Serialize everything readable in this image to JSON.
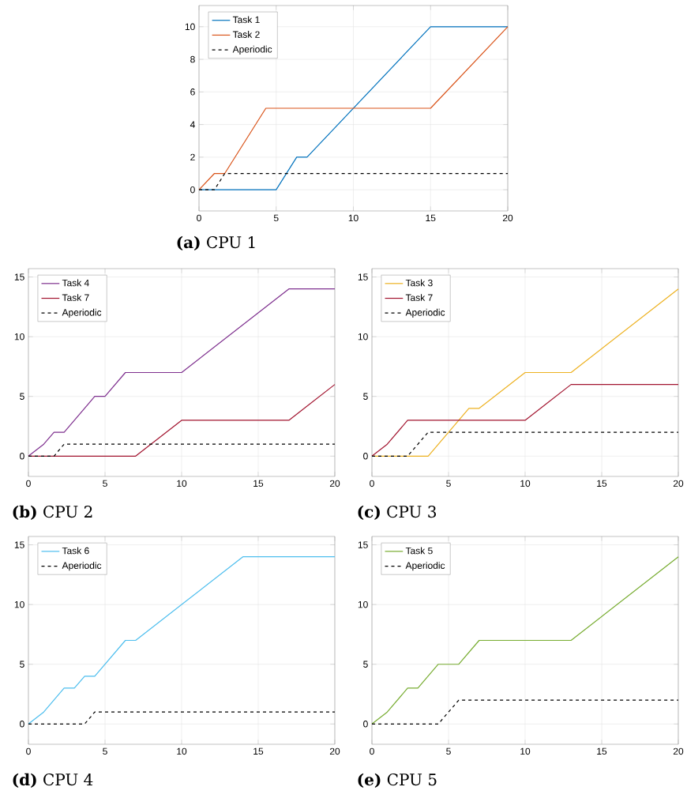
{
  "chart_data": [
    {
      "type": "line",
      "title": "**(a)** CPU 1",
      "xlim": [
        0,
        20
      ],
      "ylim": [
        -1.3,
        11.3
      ],
      "xticks": [
        0,
        5,
        10,
        15,
        20
      ],
      "yticks": [
        0,
        2,
        4,
        6,
        8,
        10
      ],
      "grid": true,
      "legend": "top left",
      "series": [
        {
          "name": "Task 1",
          "color": "#0072bd",
          "line_style": "solid",
          "x": [
            0,
            5,
            6.33,
            7,
            15,
            20
          ],
          "values": [
            0,
            0,
            2,
            2,
            10,
            10
          ]
        },
        {
          "name": "Task 2",
          "color": "#d95319",
          "line_style": "solid",
          "x": [
            0,
            1,
            1.67,
            4.33,
            15,
            20
          ],
          "values": [
            0,
            1,
            1,
            5,
            5,
            10
          ]
        },
        {
          "name": "Aperiodic",
          "color": "#000000",
          "line_style": "dashed",
          "x": [
            0,
            1,
            1.67,
            20
          ],
          "values": [
            0,
            0,
            1,
            1
          ]
        }
      ]
    },
    {
      "type": "line",
      "title": "**(b)** CPU 2",
      "xlim": [
        0,
        20
      ],
      "ylim": [
        -1.7,
        15.7
      ],
      "xticks": [
        0,
        5,
        10,
        15,
        20
      ],
      "yticks": [
        0,
        5,
        10,
        15
      ],
      "grid": true,
      "legend": "top left",
      "series": [
        {
          "name": "Task 4",
          "color": "#7e2f8e",
          "line_style": "solid",
          "x": [
            0,
            1,
            1.67,
            2.33,
            4.33,
            5,
            6.33,
            10,
            17,
            20
          ],
          "values": [
            0,
            1,
            2,
            2,
            5,
            5,
            7,
            7,
            14,
            14
          ]
        },
        {
          "name": "Task 7",
          "color": "#a2142f",
          "line_style": "solid",
          "x": [
            0,
            7,
            10,
            17,
            20
          ],
          "values": [
            0,
            0,
            3,
            3,
            6
          ]
        },
        {
          "name": "Aperiodic",
          "color": "#000000",
          "line_style": "dashed",
          "x": [
            0,
            1.67,
            2.33,
            20
          ],
          "values": [
            0,
            0,
            1,
            1
          ]
        }
      ]
    },
    {
      "type": "line",
      "title": "**(c)** CPU 3",
      "xlim": [
        0,
        20
      ],
      "ylim": [
        -1.7,
        15.7
      ],
      "xticks": [
        0,
        5,
        10,
        15,
        20
      ],
      "yticks": [
        0,
        5,
        10,
        15
      ],
      "grid": true,
      "legend": "top left",
      "series": [
        {
          "name": "Task 3",
          "color": "#edb120",
          "line_style": "solid",
          "x": [
            0,
            3.67,
            6.33,
            7,
            10,
            13,
            20
          ],
          "values": [
            0,
            0,
            4,
            4,
            7,
            7,
            14
          ]
        },
        {
          "name": "Task 7",
          "color": "#a2142f",
          "line_style": "solid",
          "x": [
            0,
            1,
            2.33,
            10,
            13,
            20
          ],
          "values": [
            0,
            1,
            3,
            3,
            6,
            6
          ]
        },
        {
          "name": "Aperiodic",
          "color": "#000000",
          "line_style": "dashed",
          "x": [
            0,
            2.33,
            3.67,
            20
          ],
          "values": [
            0,
            0,
            2,
            2
          ]
        }
      ]
    },
    {
      "type": "line",
      "title": "**(d)** CPU 4",
      "xlim": [
        0,
        20
      ],
      "ylim": [
        -1.7,
        15.7
      ],
      "xticks": [
        0,
        5,
        10,
        15,
        20
      ],
      "yticks": [
        0,
        5,
        10,
        15
      ],
      "grid": true,
      "legend": "top left",
      "series": [
        {
          "name": "Task 6",
          "color": "#4dbeee",
          "line_style": "solid",
          "x": [
            0,
            1,
            2.33,
            3,
            3.67,
            4.33,
            6.33,
            7,
            14,
            20
          ],
          "values": [
            0,
            1,
            3,
            3,
            4,
            4,
            7,
            7,
            14,
            14
          ]
        },
        {
          "name": "Aperiodic",
          "color": "#000000",
          "line_style": "dashed",
          "x": [
            0,
            3.67,
            4.33,
            20
          ],
          "values": [
            0,
            0,
            1,
            1
          ]
        }
      ]
    },
    {
      "type": "line",
      "title": "**(e)** CPU 5",
      "xlim": [
        0,
        20
      ],
      "ylim": [
        -1.7,
        15.7
      ],
      "xticks": [
        0,
        5,
        10,
        15,
        20
      ],
      "yticks": [
        0,
        5,
        10,
        15
      ],
      "grid": true,
      "legend": "top left",
      "series": [
        {
          "name": "Task 5",
          "color": "#77ac30",
          "line_style": "solid",
          "x": [
            0,
            1,
            2.33,
            3,
            4.33,
            5.67,
            7,
            13,
            20
          ],
          "values": [
            0,
            1,
            3,
            3,
            5,
            5,
            7,
            7,
            14
          ]
        },
        {
          "name": "Aperiodic",
          "color": "#000000",
          "line_style": "dashed",
          "x": [
            0,
            4.33,
            5.67,
            20
          ],
          "values": [
            0,
            0,
            2,
            2
          ]
        }
      ]
    }
  ]
}
